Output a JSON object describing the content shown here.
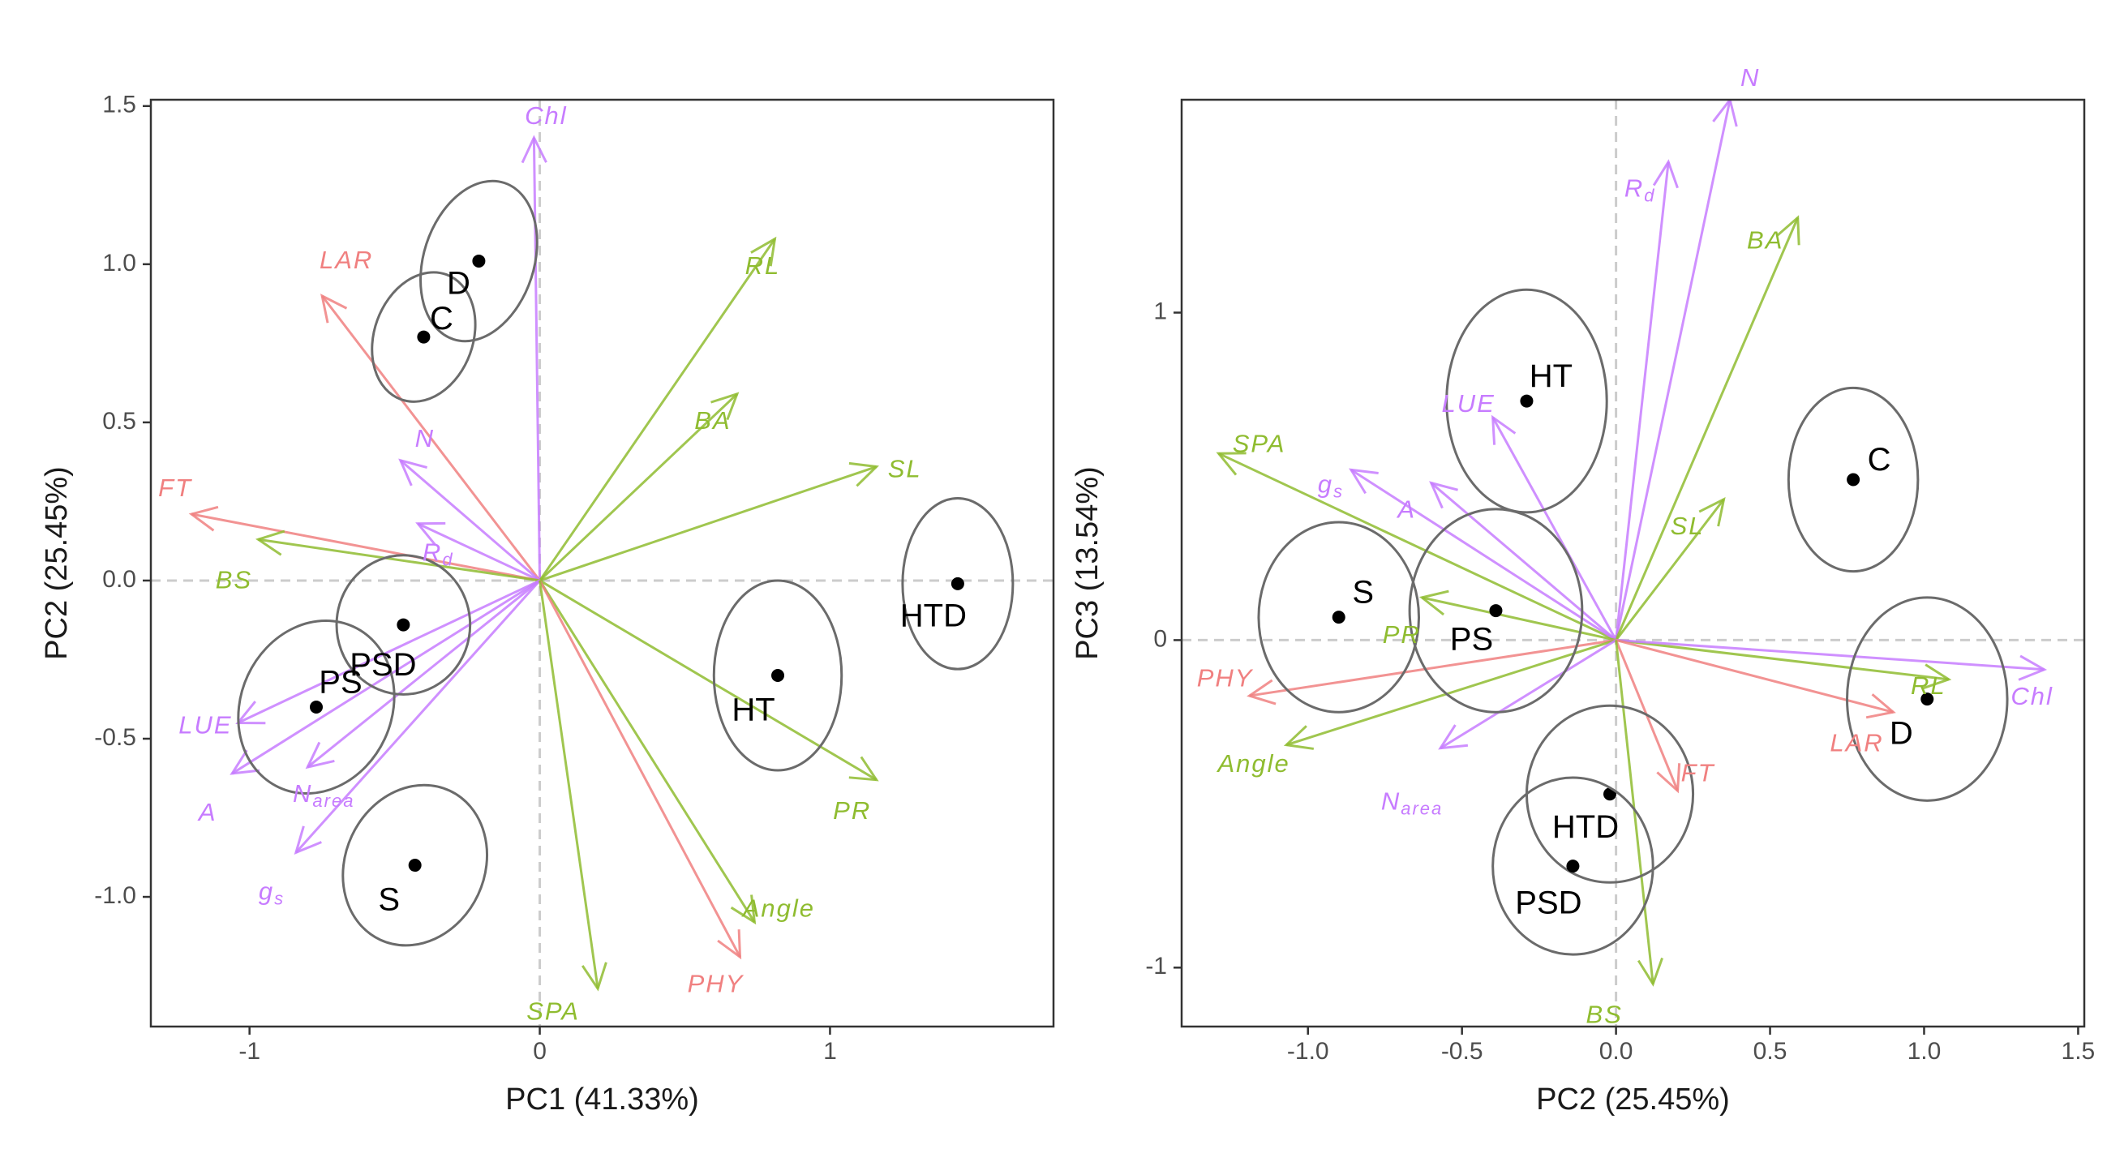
{
  "chart_data": [
    {
      "type": "scatter",
      "title": "",
      "xlabel": "PC1 (41.33%)",
      "ylabel": "PC2 (25.45%)",
      "xlim": [
        -1.34,
        1.77
      ],
      "ylim": [
        -1.41,
        1.52
      ],
      "xticks": [
        -1,
        0,
        1
      ],
      "xtick_labels": [
        "-1",
        "0",
        "1"
      ],
      "yticks": [
        -1.0,
        -0.5,
        0.0,
        0.5,
        1.0,
        1.5
      ],
      "ytick_labels": [
        "-1.0",
        "-0.5",
        "0.0",
        "0.5",
        "1.0",
        "1.5"
      ],
      "grid": false,
      "reference_lines": "dashed grey lines at x=0 and y=0",
      "group_colors": {
        "red": "#f08080",
        "green": "#8fbc30",
        "purple": "#c77cff"
      },
      "groups": [
        {
          "label": "D",
          "x": -0.21,
          "y": 1.01,
          "ellipse": {
            "rx": 0.19,
            "ry": 0.26,
            "rot": 18
          }
        },
        {
          "label": "C",
          "x": -0.4,
          "y": 0.77,
          "ellipse": {
            "rx": 0.17,
            "ry": 0.21,
            "rot": 20
          }
        },
        {
          "label": "PSD",
          "x": -0.47,
          "y": -0.14,
          "ellipse": {
            "rx": 0.23,
            "ry": 0.22,
            "rot": 0
          }
        },
        {
          "label": "PS",
          "x": -0.77,
          "y": -0.4,
          "ellipse": {
            "rx": 0.26,
            "ry": 0.28,
            "rot": 25
          }
        },
        {
          "label": "S",
          "x": -0.43,
          "y": -0.9,
          "ellipse": {
            "rx": 0.24,
            "ry": 0.26,
            "rot": 25
          }
        },
        {
          "label": "HT",
          "x": 0.82,
          "y": -0.3,
          "ellipse": {
            "rx": 0.22,
            "ry": 0.3,
            "rot": 0
          }
        },
        {
          "label": "HTD",
          "x": 1.44,
          "y": -0.01,
          "ellipse": {
            "rx": 0.19,
            "ry": 0.27,
            "rot": 0
          }
        }
      ],
      "vectors": [
        {
          "label": "Chl",
          "color": "purple",
          "x": -0.02,
          "y": 1.4
        },
        {
          "label": "LAR",
          "color": "red",
          "x": -0.75,
          "y": 0.9
        },
        {
          "label": "RL",
          "color": "green",
          "x": 0.81,
          "y": 1.08
        },
        {
          "label": "BA",
          "color": "green",
          "x": 0.68,
          "y": 0.59
        },
        {
          "label": "SL",
          "color": "green",
          "x": 1.16,
          "y": 0.36
        },
        {
          "label": "N",
          "color": "purple",
          "x": -0.48,
          "y": 0.38
        },
        {
          "label": "R_d",
          "color": "purple",
          "x": -0.42,
          "y": 0.18
        },
        {
          "label": "FT",
          "color": "red",
          "x": -1.2,
          "y": 0.21
        },
        {
          "label": "BS",
          "color": "green",
          "x": -0.97,
          "y": 0.13
        },
        {
          "label": "LUE",
          "color": "purple",
          "x": -1.04,
          "y": -0.45
        },
        {
          "label": "A",
          "color": "purple",
          "x": -1.06,
          "y": -0.61
        },
        {
          "label": "N_area",
          "color": "purple",
          "x": -0.8,
          "y": -0.59
        },
        {
          "label": "g_s",
          "color": "purple",
          "x": -0.84,
          "y": -0.86
        },
        {
          "label": "PR",
          "color": "green",
          "x": 1.16,
          "y": -0.63
        },
        {
          "label": "Angle",
          "color": "green",
          "x": 0.74,
          "y": -1.08
        },
        {
          "label": "PHY",
          "color": "red",
          "x": 0.69,
          "y": -1.19
        },
        {
          "label": "SPA",
          "color": "green",
          "x": 0.2,
          "y": -1.29
        }
      ]
    },
    {
      "type": "scatter",
      "title": "",
      "xlabel": "PC2 (25.45%)",
      "ylabel": "PC3 (13.54%)",
      "xlim": [
        -1.41,
        1.52
      ],
      "ylim": [
        -1.18,
        1.65
      ],
      "xticks": [
        -1.0,
        -0.5,
        0.0,
        0.5,
        1.0,
        1.5
      ],
      "xtick_labels": [
        "-1.0",
        "-0.5",
        "0.0",
        "0.5",
        "1.0",
        "1.5"
      ],
      "yticks": [
        -1,
        0,
        1
      ],
      "ytick_labels": [
        "-1",
        "0",
        "1"
      ],
      "grid": false,
      "reference_lines": "dashed grey lines at x=0 and y=0",
      "group_colors": {
        "red": "#f08080",
        "green": "#8fbc30",
        "purple": "#c77cff"
      },
      "groups": [
        {
          "label": "HT",
          "x": -0.29,
          "y": 0.73,
          "ellipse": {
            "rx": 0.26,
            "ry": 0.34,
            "rot": 0
          }
        },
        {
          "label": "C",
          "x": 0.77,
          "y": 0.49,
          "ellipse": {
            "rx": 0.21,
            "ry": 0.28,
            "rot": 0
          }
        },
        {
          "label": "S",
          "x": -0.9,
          "y": 0.07,
          "ellipse": {
            "rx": 0.26,
            "ry": 0.29,
            "rot": 0
          }
        },
        {
          "label": "PS",
          "x": -0.39,
          "y": 0.09,
          "ellipse": {
            "rx": 0.28,
            "ry": 0.31,
            "rot": 0
          }
        },
        {
          "label": "D",
          "x": 1.01,
          "y": -0.18,
          "ellipse": {
            "rx": 0.26,
            "ry": 0.31,
            "rot": 0
          }
        },
        {
          "label": "HTD",
          "x": -0.02,
          "y": -0.47,
          "ellipse": {
            "rx": 0.27,
            "ry": 0.27,
            "rot": 0
          }
        },
        {
          "label": "PSD",
          "x": -0.14,
          "y": -0.69,
          "ellipse": {
            "rx": 0.26,
            "ry": 0.27,
            "rot": 0
          }
        }
      ],
      "vectors": [
        {
          "label": "N",
          "color": "purple",
          "x": 0.37,
          "y": 1.65
        },
        {
          "label": "R_d",
          "color": "purple",
          "x": 0.17,
          "y": 1.46
        },
        {
          "label": "BA",
          "color": "green",
          "x": 0.59,
          "y": 1.29
        },
        {
          "label": "LUE",
          "color": "purple",
          "x": -0.4,
          "y": 0.68
        },
        {
          "label": "SPA",
          "color": "green",
          "x": -1.29,
          "y": 0.57
        },
        {
          "label": "g_s",
          "color": "purple",
          "x": -0.86,
          "y": 0.52
        },
        {
          "label": "A",
          "color": "purple",
          "x": -0.6,
          "y": 0.48
        },
        {
          "label": "SL",
          "color": "green",
          "x": 0.35,
          "y": 0.43
        },
        {
          "label": "PR",
          "color": "green",
          "x": -0.63,
          "y": 0.13
        },
        {
          "label": "RL",
          "color": "green",
          "x": 1.08,
          "y": -0.12
        },
        {
          "label": "Chl",
          "color": "purple",
          "x": 1.39,
          "y": -0.09
        },
        {
          "label": "LAR",
          "color": "red",
          "x": 0.9,
          "y": -0.22
        },
        {
          "label": "PHY",
          "color": "red",
          "x": -1.19,
          "y": -0.17
        },
        {
          "label": "Angle",
          "color": "green",
          "x": -1.07,
          "y": -0.32
        },
        {
          "label": "N_area",
          "color": "purple",
          "x": -0.57,
          "y": -0.33
        },
        {
          "label": "FT",
          "color": "red",
          "x": 0.2,
          "y": -0.46
        },
        {
          "label": "BS",
          "color": "green",
          "x": 0.12,
          "y": -1.05
        }
      ]
    }
  ]
}
